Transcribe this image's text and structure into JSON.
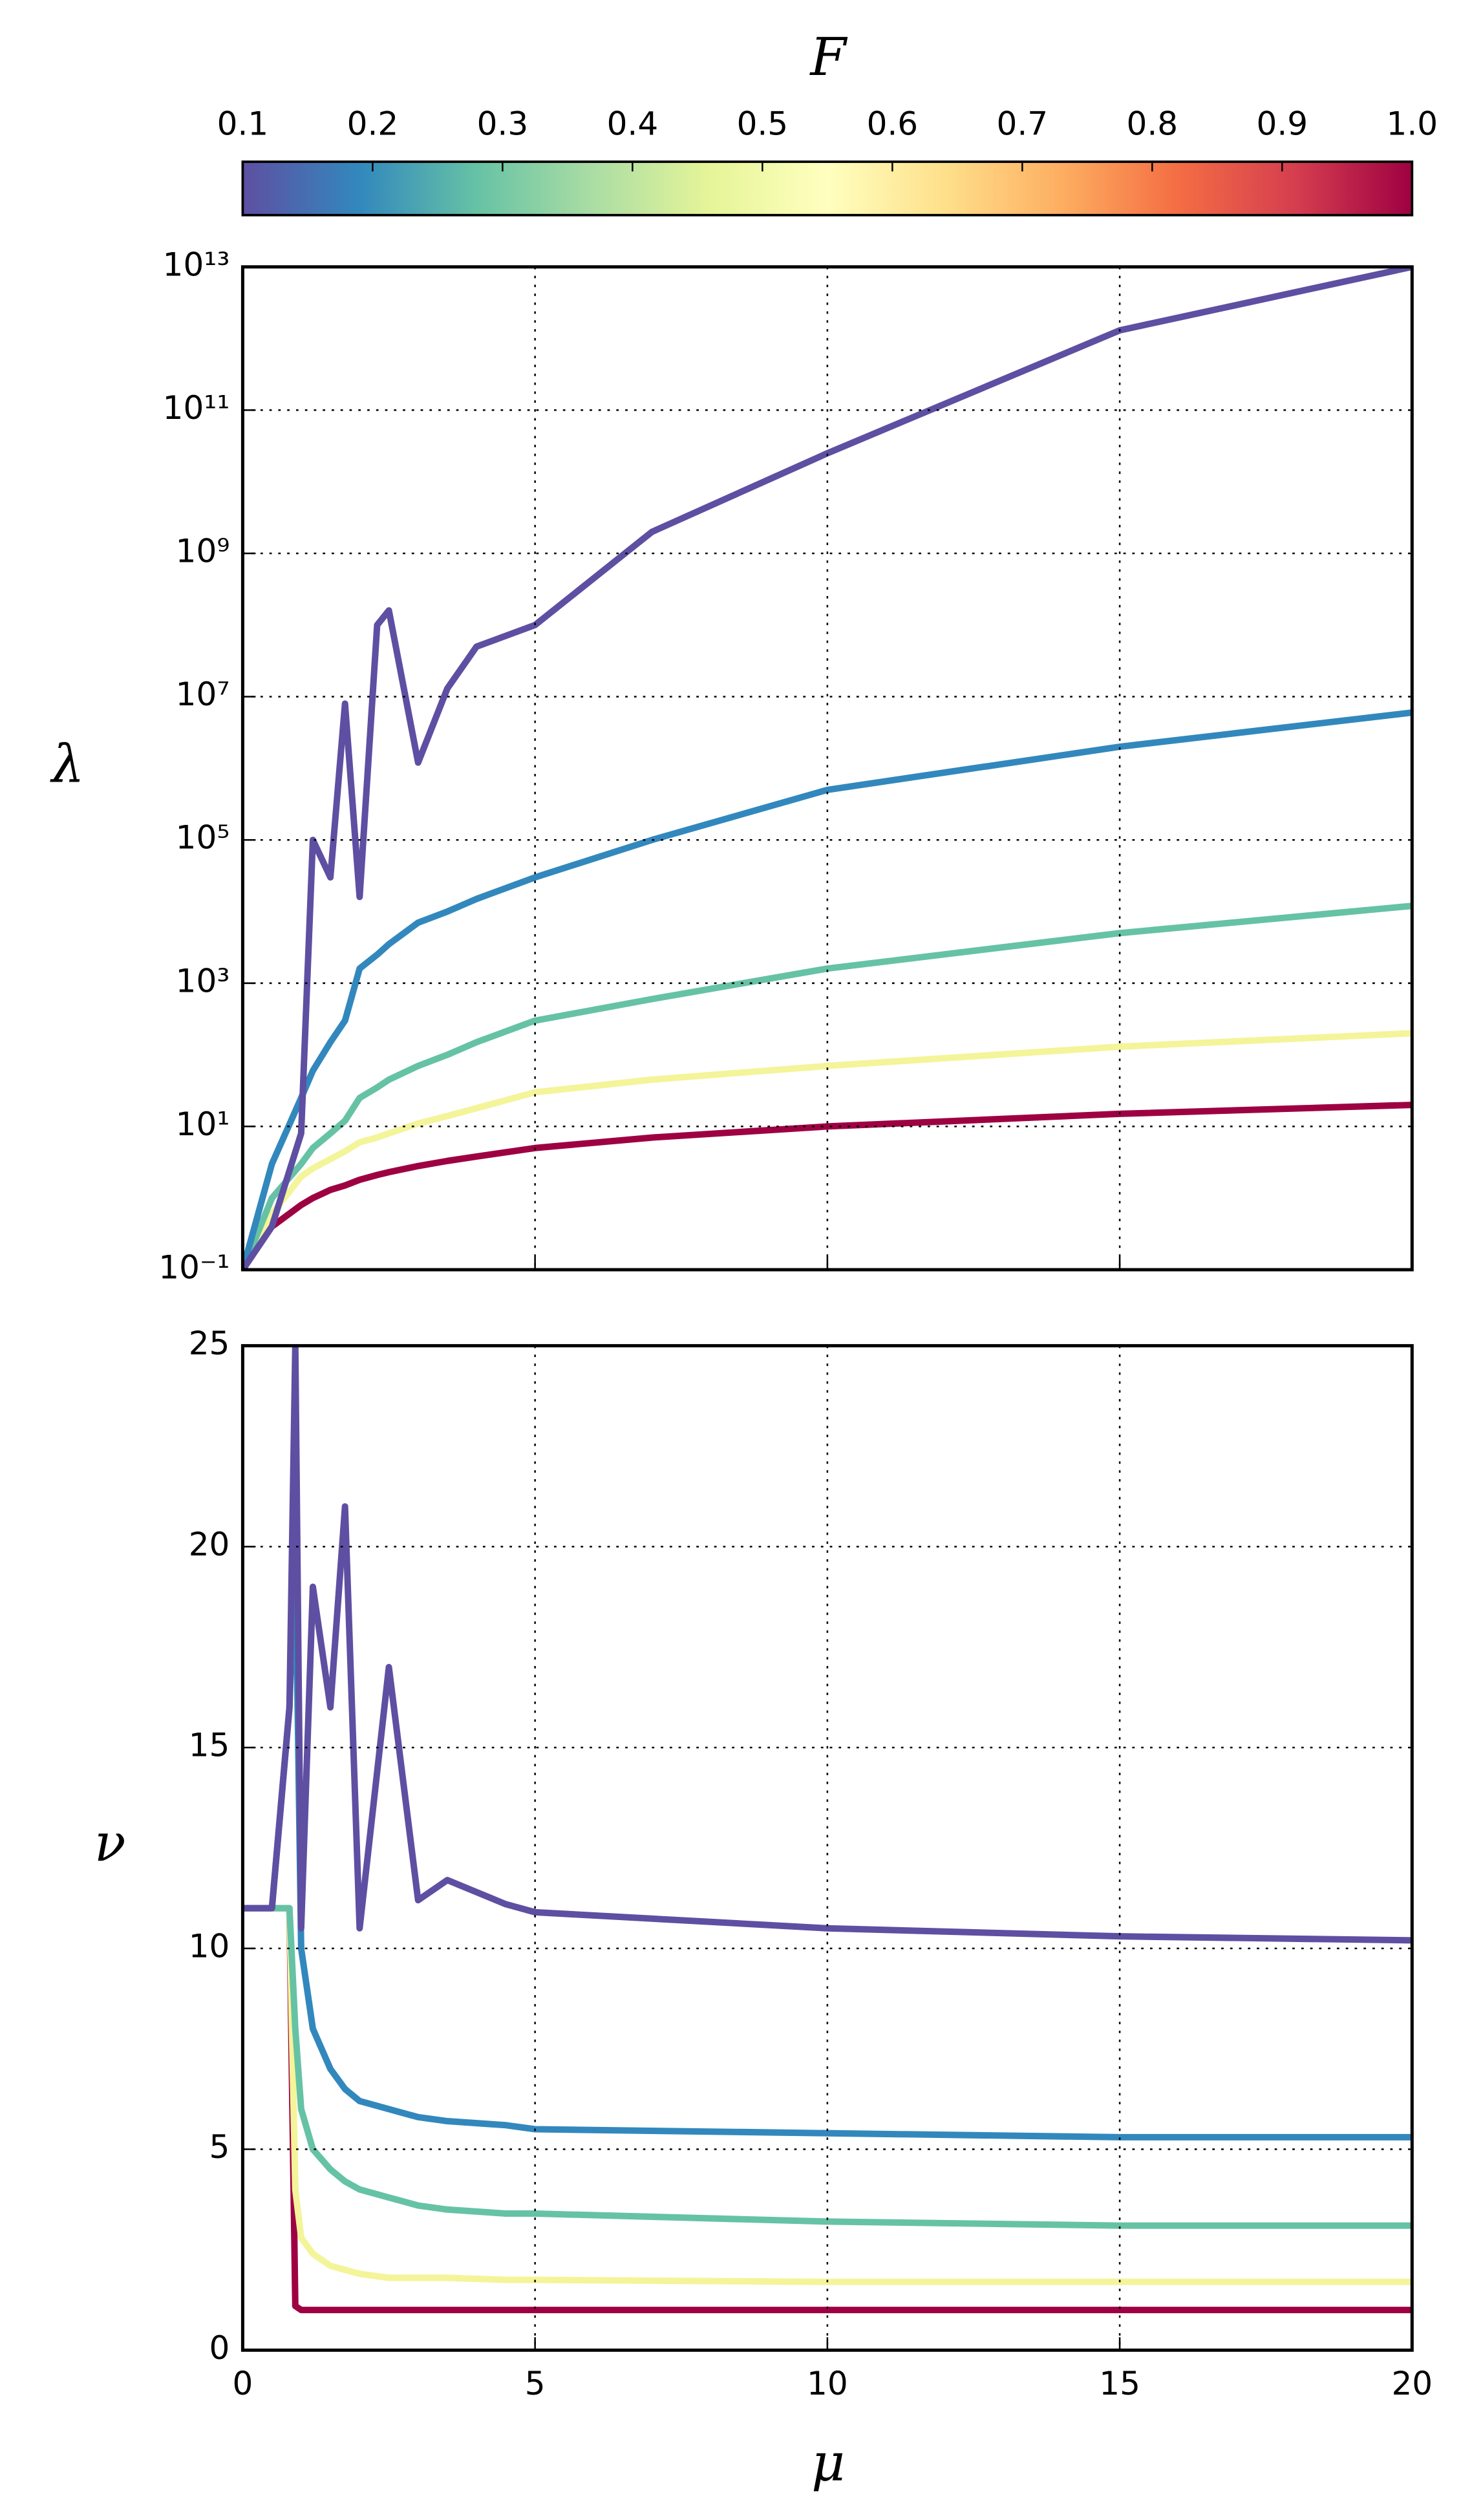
{
  "chart_data": [
    {
      "type": "line",
      "ylabel": "λ",
      "log_y": true,
      "grid": true,
      "x": [
        0,
        0.5,
        1,
        1.2,
        1.5,
        1.75,
        2,
        2.3,
        2.5,
        3,
        3.5,
        4,
        5,
        7,
        10,
        15,
        20
      ],
      "series": [
        {
          "color": "#9e0142",
          "values": [
            0.1,
            0.4,
            0.8,
            1,
            1.3,
            1.5,
            1.8,
            2.1,
            2.3,
            2.8,
            3.3,
            3.8,
            5,
            7,
            10,
            15,
            20
          ]
        },
        {
          "color": "#f4f49a",
          "values": [
            0.1,
            0.6,
            2,
            2.6,
            3.5,
            4.5,
            6,
            7,
            8,
            11,
            14,
            18,
            30,
            45,
            70,
            130,
            200
          ]
        },
        {
          "color": "#66c2a5",
          "values": [
            0.1,
            1,
            3,
            5,
            8,
            12,
            25,
            35,
            45,
            70,
            100,
            150,
            300,
            600,
            1600,
            5000,
            12000
          ]
        },
        {
          "color": "#3288bd",
          "values": [
            0.1,
            3,
            25,
            60,
            150,
            300,
            1600,
            2500,
            3500,
            7000,
            10000,
            15000,
            30000,
            100000,
            500000,
            2000000,
            6000000
          ]
        },
        {
          "color": "#5e4fa2",
          "values": [
            0.1,
            0.4,
            8,
            100000,
            30000,
            8000000,
            16000,
            100000000,
            160000000,
            1200000,
            13000000,
            50000000,
            100000000,
            2000000000,
            25000000000,
            1300000000000,
            10000000000000
          ]
        }
      ],
      "xlim": [
        0,
        20
      ],
      "xticks": [
        0,
        5,
        10,
        15,
        20
      ],
      "ylim": [
        0.1,
        10000000000000
      ],
      "yticks": [
        {
          "value": 0.1,
          "label": "10⁻¹"
        },
        {
          "value": 10,
          "label": "10¹"
        },
        {
          "value": 1000,
          "label": "10³"
        },
        {
          "value": 100000,
          "label": "10⁵"
        },
        {
          "value": 10000000,
          "label": "10⁷"
        },
        {
          "value": 1000000000,
          "label": "10⁹"
        },
        {
          "value": 100000000000,
          "label": "10¹¹"
        },
        {
          "value": 10000000000000,
          "label": "10¹³"
        }
      ],
      "colorbar": {
        "label": "F",
        "lim": [
          0.1,
          1
        ],
        "ticks": [
          0.1,
          0.2,
          0.3,
          0.4,
          0.5,
          0.6,
          0.7,
          0.8,
          0.9,
          {
            "value": 1,
            "label": "1.0"
          }
        ],
        "colors": [
          "#5e4fa2",
          "#3288bd",
          "#66c2a5",
          "#abdda4",
          "#e6f598",
          "#ffffbf",
          "#fee08b",
          "#fdae61",
          "#f46d43",
          "#d53e4f",
          "#9e0142"
        ]
      }
    },
    {
      "type": "line",
      "xlabel": "μ",
      "ylabel": "ν",
      "grid": true,
      "x": [
        0,
        0.5,
        0.8,
        0.9,
        1,
        1.2,
        1.5,
        1.75,
        2,
        2.5,
        3,
        3.5,
        4.5,
        5,
        10,
        15,
        20
      ],
      "series": [
        {
          "color": "#9e0142",
          "values": [
            11,
            11,
            11,
            1.1,
            1,
            1,
            1,
            1,
            1,
            1,
            1,
            1,
            1,
            1,
            1,
            1,
            1
          ]
        },
        {
          "color": "#f4f49a",
          "values": [
            11,
            11,
            11,
            4,
            2.8,
            2.4,
            2.1,
            2,
            1.9,
            1.8,
            1.8,
            1.8,
            1.75,
            1.75,
            1.7,
            1.7,
            1.7
          ]
        },
        {
          "color": "#66c2a5",
          "values": [
            11,
            11,
            11,
            8,
            6,
            5,
            4.5,
            4.2,
            4,
            3.8,
            3.6,
            3.5,
            3.4,
            3.4,
            3.2,
            3.1,
            3.1
          ]
        },
        {
          "color": "#3288bd",
          "values": [
            11,
            11,
            16,
            20,
            10,
            8,
            7,
            6.5,
            6.2,
            6,
            5.8,
            5.7,
            5.6,
            5.5,
            5.4,
            5.3,
            5.3
          ]
        },
        {
          "color": "#5e4fa2",
          "values": [
            11,
            11,
            16,
            25,
            10.5,
            19,
            16,
            21,
            10.5,
            17,
            11.2,
            11.7,
            11.1,
            10.9,
            10.5,
            10.3,
            10.2
          ]
        }
      ],
      "xlim": [
        0,
        20
      ],
      "xticks": [
        0,
        5,
        10,
        15,
        20
      ],
      "ylim": [
        0,
        25
      ],
      "yticks": [
        0,
        5,
        10,
        15,
        20,
        25
      ]
    }
  ]
}
